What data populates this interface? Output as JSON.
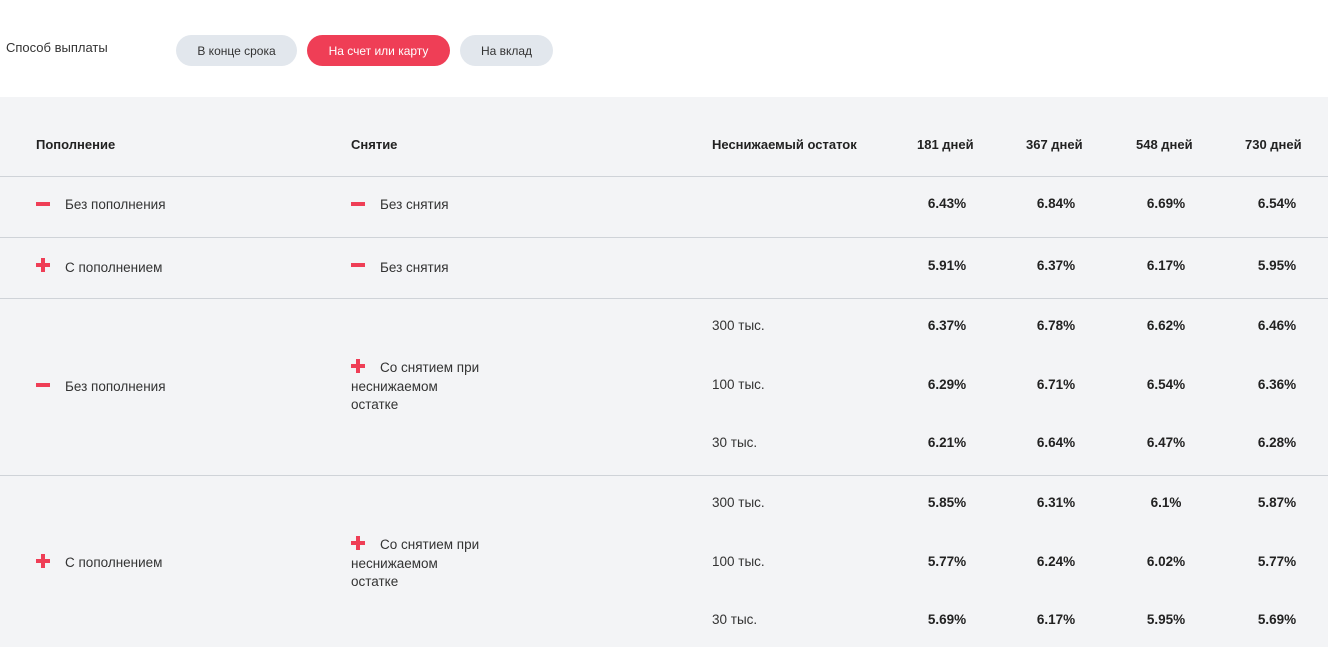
{
  "payout": {
    "label": "Способ выплаты",
    "options": [
      {
        "label": "В конце срока",
        "active": false
      },
      {
        "label": "На счет или карту",
        "active": true
      },
      {
        "label": "На вклад",
        "active": false
      }
    ]
  },
  "colors": {
    "accent": "#ef3e56",
    "inactive_pill": "#e2e7ed",
    "table_bg": "#f3f4f6"
  },
  "table": {
    "headers": {
      "deposit": "Пополнение",
      "withdraw": "Снятие",
      "min_balance": "Неснижаемый остаток",
      "terms": [
        "181 дней",
        "367 дней",
        "548 дней",
        "730 дней"
      ]
    },
    "rows": [
      {
        "deposit": {
          "icon": "minus-icon",
          "label": "Без пополнения"
        },
        "withdraw": {
          "icon": "minus-icon",
          "label": "Без снятия"
        },
        "lines": [
          {
            "balance": "",
            "rates": [
              "6.43%",
              "6.84%",
              "6.69%",
              "6.54%"
            ]
          }
        ]
      },
      {
        "deposit": {
          "icon": "plus-icon",
          "label": "С пополнением"
        },
        "withdraw": {
          "icon": "minus-icon",
          "label": "Без снятия"
        },
        "lines": [
          {
            "balance": "",
            "rates": [
              "5.91%",
              "6.37%",
              "6.17%",
              "5.95%"
            ]
          }
        ]
      },
      {
        "deposit": {
          "icon": "minus-icon",
          "label": "Без пополнения"
        },
        "withdraw": {
          "icon": "plus-icon",
          "label_line1": "Со снятием при",
          "label_line2": "неснижаемом",
          "label_line3": "остатке"
        },
        "lines": [
          {
            "balance": "300 тыс.",
            "rates": [
              "6.37%",
              "6.78%",
              "6.62%",
              "6.46%"
            ]
          },
          {
            "balance": "100 тыс.",
            "rates": [
              "6.29%",
              "6.71%",
              "6.54%",
              "6.36%"
            ]
          },
          {
            "balance": "30 тыс.",
            "rates": [
              "6.21%",
              "6.64%",
              "6.47%",
              "6.28%"
            ]
          }
        ]
      },
      {
        "deposit": {
          "icon": "plus-icon",
          "label": "С пополнением"
        },
        "withdraw": {
          "icon": "plus-icon",
          "label_line1": "Со снятием при",
          "label_line2": "неснижаемом",
          "label_line3": "остатке"
        },
        "lines": [
          {
            "balance": "300 тыс.",
            "rates": [
              "5.85%",
              "6.31%",
              "6.1%",
              "5.87%"
            ]
          },
          {
            "balance": "100 тыс.",
            "rates": [
              "5.77%",
              "6.24%",
              "6.02%",
              "5.77%"
            ]
          },
          {
            "balance": "30 тыс.",
            "rates": [
              "5.69%",
              "6.17%",
              "5.95%",
              "5.69%"
            ]
          }
        ]
      }
    ]
  }
}
